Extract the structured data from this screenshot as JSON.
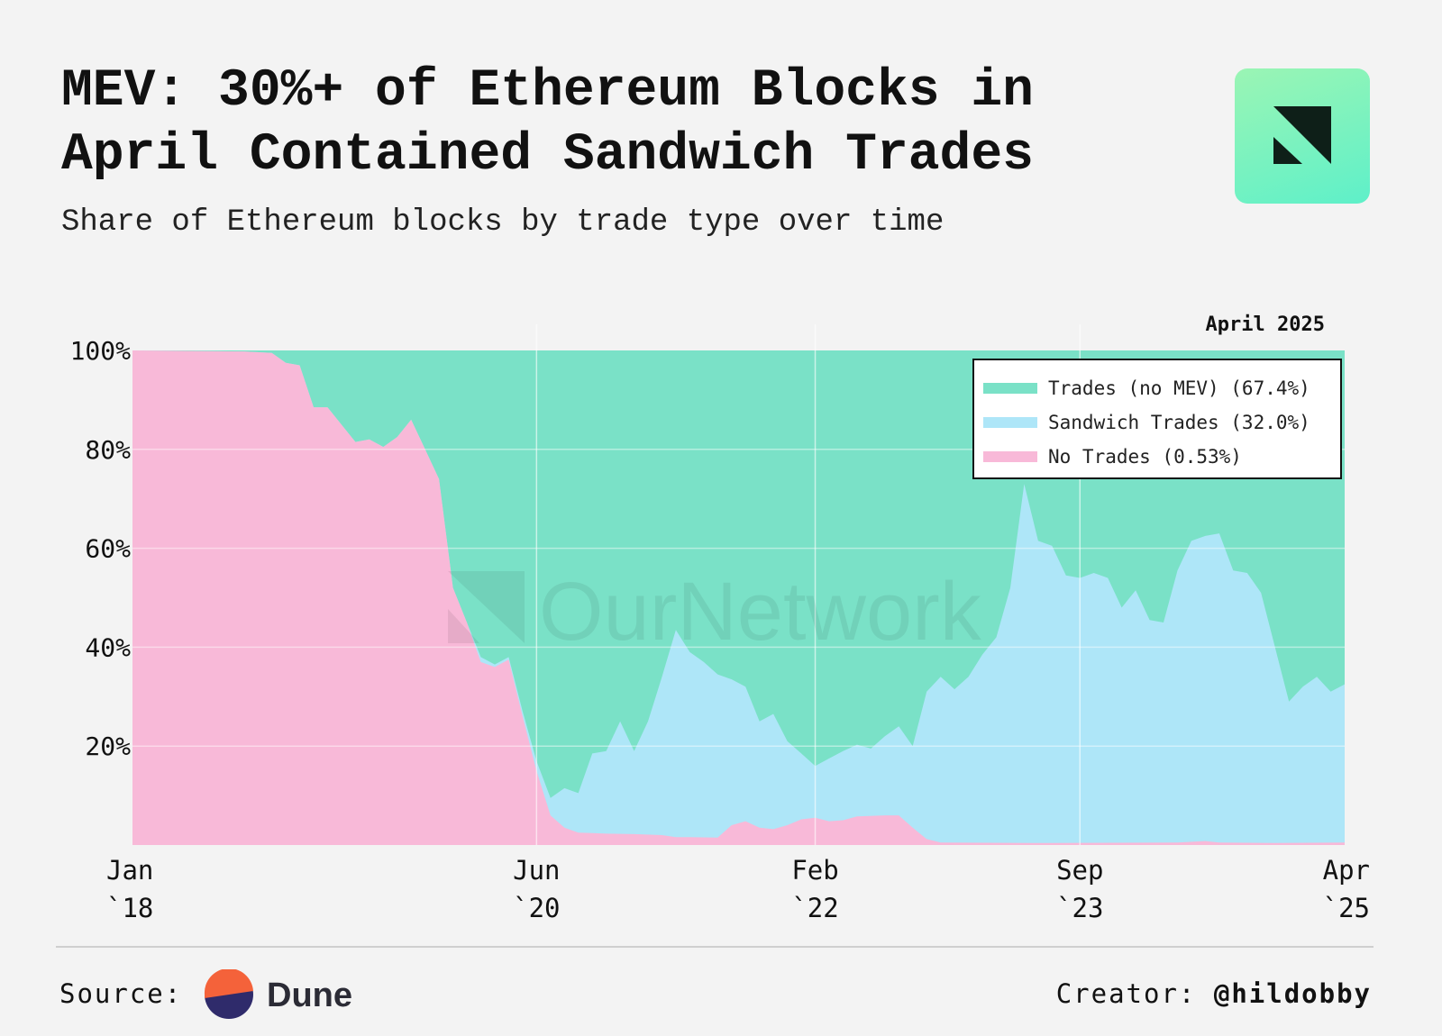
{
  "header": {
    "title_line1": "MEV: 30%+ of Ethereum Blocks in",
    "title_line2": "April Contained Sandwich Trades",
    "subtitle": "Share of Ethereum blocks by trade type over time"
  },
  "watermark": "OurNetwork",
  "footer": {
    "source_label": "Source:",
    "source_name": "Dune",
    "creator_label": "Creator:",
    "creator_handle": "@hildobby"
  },
  "colors": {
    "background": "#f3f3f3",
    "no_mev": "#7ae1c7",
    "sandwich": "#aee6f8",
    "no_trades": "#f8b9d8"
  },
  "chart_data": {
    "type": "area",
    "stacked": true,
    "normalized_percent": true,
    "title": "Share of Ethereum blocks by trade type over time",
    "annotation": "April 2025",
    "y_ticks": [
      "20%",
      "40%",
      "60%",
      "80%",
      "100%"
    ],
    "ylim": [
      0,
      100
    ],
    "x_ticks": [
      {
        "line1": "Jan",
        "line2": "`18",
        "t": 0
      },
      {
        "line1": "Jun",
        "line2": "`20",
        "t": 29
      },
      {
        "line1": "Feb",
        "line2": "`22",
        "t": 49
      },
      {
        "line1": "Sep",
        "line2": "`23",
        "t": 68
      },
      {
        "line1": "Apr",
        "line2": "`25",
        "t": 87
      }
    ],
    "x_range_months": [
      0,
      87
    ],
    "legend": [
      {
        "label": "Trades (no MEV) (67.4%)",
        "series": "no_mev"
      },
      {
        "label": "Sandwich Trades (32.0%)",
        "series": "sandwich"
      },
      {
        "label": "No Trades (0.53%)",
        "series": "no_trades"
      }
    ],
    "series": [
      {
        "name": "No Trades",
        "key": "no_trades",
        "points": [
          [
            0,
            100
          ],
          [
            4,
            99.9
          ],
          [
            8,
            99.8
          ],
          [
            10,
            99.5
          ],
          [
            11,
            97.5
          ],
          [
            12,
            97
          ],
          [
            13,
            88.5
          ],
          [
            14,
            88.5
          ],
          [
            15,
            85
          ],
          [
            16,
            81.5
          ],
          [
            17,
            82
          ],
          [
            18,
            80.5
          ],
          [
            19,
            82.5
          ],
          [
            20,
            86
          ],
          [
            21,
            80
          ],
          [
            22,
            74
          ],
          [
            23,
            52
          ],
          [
            24,
            45
          ],
          [
            25,
            37
          ],
          [
            26,
            36
          ],
          [
            27,
            37.5
          ],
          [
            28,
            26
          ],
          [
            29,
            15
          ],
          [
            30,
            6
          ],
          [
            31,
            3.5
          ],
          [
            32,
            2.5
          ],
          [
            33,
            2.4
          ],
          [
            34,
            2.3
          ],
          [
            36,
            2.2
          ],
          [
            38,
            2
          ],
          [
            39,
            1.6
          ],
          [
            40,
            1.6
          ],
          [
            42,
            1.5
          ],
          [
            43,
            4
          ],
          [
            44,
            4.8
          ],
          [
            45,
            3.5
          ],
          [
            46,
            3.2
          ],
          [
            47,
            4
          ],
          [
            48,
            5.2
          ],
          [
            49,
            5.5
          ],
          [
            50,
            4.8
          ],
          [
            51,
            5
          ],
          [
            52,
            5.8
          ],
          [
            54,
            6
          ],
          [
            55,
            6
          ],
          [
            56,
            3.5
          ],
          [
            57,
            1.2
          ],
          [
            58,
            0.5
          ],
          [
            66,
            0.4
          ],
          [
            75,
            0.5
          ],
          [
            77,
            0.8
          ],
          [
            78,
            0.5
          ],
          [
            82,
            0.4
          ],
          [
            87,
            0.5
          ]
        ]
      },
      {
        "name": "Sandwich Trades",
        "key": "sandwich",
        "points_cumulative": [
          [
            0,
            100
          ],
          [
            4,
            99.9
          ],
          [
            8,
            99.8
          ],
          [
            10,
            99.5
          ],
          [
            11,
            97.5
          ],
          [
            12,
            97
          ],
          [
            13,
            88.5
          ],
          [
            14,
            88.5
          ],
          [
            15,
            85
          ],
          [
            16,
            81.5
          ],
          [
            17,
            82
          ],
          [
            18,
            80.5
          ],
          [
            19,
            82.5
          ],
          [
            20,
            86
          ],
          [
            21,
            80
          ],
          [
            22,
            74
          ],
          [
            23,
            52
          ],
          [
            24,
            45
          ],
          [
            25,
            38
          ],
          [
            26,
            36.5
          ],
          [
            27,
            38
          ],
          [
            28,
            27
          ],
          [
            29,
            17
          ],
          [
            30,
            9.5
          ],
          [
            31,
            11.5
          ],
          [
            32,
            10.5
          ],
          [
            33,
            18.5
          ],
          [
            34,
            19
          ],
          [
            35,
            25
          ],
          [
            36,
            19
          ],
          [
            37,
            25
          ],
          [
            38,
            34
          ],
          [
            39,
            43.5
          ],
          [
            40,
            39
          ],
          [
            41,
            37
          ],
          [
            42,
            34.5
          ],
          [
            43,
            33.5
          ],
          [
            44,
            32
          ],
          [
            45,
            25
          ],
          [
            46,
            26.5
          ],
          [
            47,
            21
          ],
          [
            48,
            18.5
          ],
          [
            49,
            16
          ],
          [
            50,
            17.5
          ],
          [
            51,
            19
          ],
          [
            52,
            20.3
          ],
          [
            53,
            19.5
          ],
          [
            54,
            22
          ],
          [
            55,
            24
          ],
          [
            56,
            20
          ],
          [
            57,
            31
          ],
          [
            58,
            34
          ],
          [
            59,
            31.5
          ],
          [
            60,
            34
          ],
          [
            61,
            38.5
          ],
          [
            62,
            42
          ],
          [
            63,
            52
          ],
          [
            64,
            73
          ],
          [
            65,
            61.5
          ],
          [
            66,
            60.5
          ],
          [
            67,
            54.5
          ],
          [
            68,
            54
          ],
          [
            69,
            55
          ],
          [
            70,
            54
          ],
          [
            71,
            48
          ],
          [
            72,
            51.5
          ],
          [
            73,
            45.5
          ],
          [
            74,
            45
          ],
          [
            75,
            55.5
          ],
          [
            76,
            61.5
          ],
          [
            77,
            62.5
          ],
          [
            78,
            63
          ],
          [
            79,
            55.5
          ],
          [
            80,
            55
          ],
          [
            81,
            51
          ],
          [
            82,
            40
          ],
          [
            83,
            29
          ],
          [
            84,
            32
          ],
          [
            85,
            34
          ],
          [
            86,
            31
          ],
          [
            87,
            32.5
          ]
        ]
      },
      {
        "name": "Trades (no MEV)",
        "key": "no_mev",
        "fills_to": 100
      }
    ]
  }
}
